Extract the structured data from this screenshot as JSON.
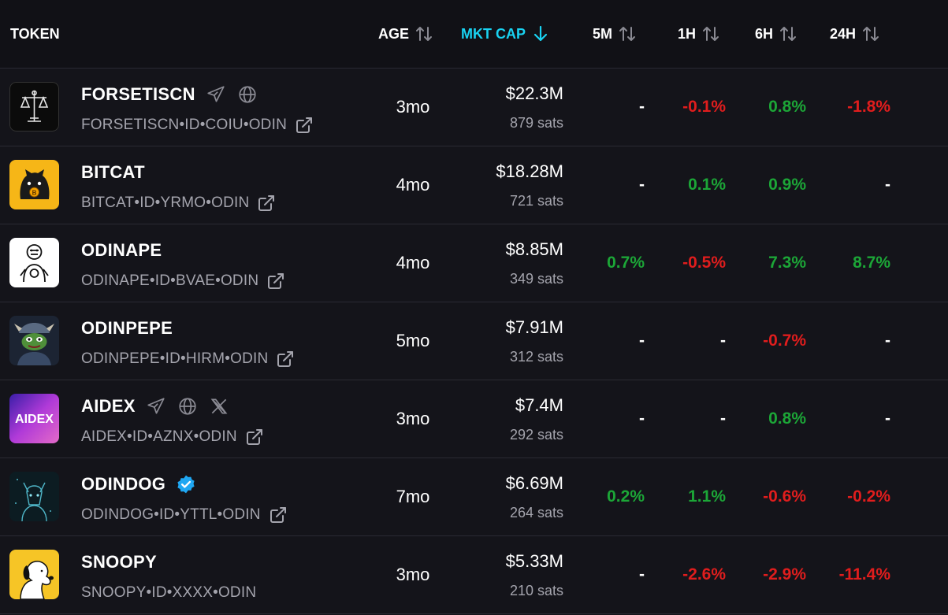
{
  "header": {
    "token": "TOKEN",
    "age": "AGE",
    "mkt_cap": "MKT CAP",
    "m5": "5M",
    "h1": "1H",
    "h6": "6H",
    "h24": "24H"
  },
  "colors": {
    "background": "#14141a",
    "accent": "#19d3f2",
    "positive": "#1ca637",
    "negative": "#e01d1d",
    "muted": "#a4a4ad"
  },
  "rows": [
    {
      "name": "FORSETISCN",
      "id": "FORSETISCN•ID•COIU•ODIN",
      "age": "3mo",
      "mcap": "$22.3M",
      "sats": "879 sats",
      "m5": "-",
      "h1": "-0.1%",
      "h6": "0.8%",
      "h24": "-1.8%",
      "icons": [
        "telegram-icon",
        "globe-icon"
      ],
      "logo": "scales-of-justice"
    },
    {
      "name": "BITCAT",
      "id": "BITCAT•ID•YRMO•ODIN",
      "age": "4mo",
      "mcap": "$18.28M",
      "sats": "721 sats",
      "m5": "-",
      "h1": "0.1%",
      "h6": "0.9%",
      "h24": "-",
      "icons": [],
      "logo": "black-cat-bitcoin"
    },
    {
      "name": "ODINAPE",
      "id": "ODINAPE•ID•BVAE•ODIN",
      "age": "4mo",
      "mcap": "$8.85M",
      "sats": "349 sats",
      "m5": "0.7%",
      "h1": "-0.5%",
      "h6": "7.3%",
      "h24": "8.7%",
      "icons": [],
      "logo": "ape-sketch"
    },
    {
      "name": "ODINPEPE",
      "id": "ODINPEPE•ID•HIRM•ODIN",
      "age": "5mo",
      "mcap": "$7.91M",
      "sats": "312 sats",
      "m5": "-",
      "h1": "-",
      "h6": "-0.7%",
      "h24": "-",
      "icons": [],
      "logo": "viking-pepe"
    },
    {
      "name": "AIDEX",
      "id": "AIDEX•ID•AZNX•ODIN",
      "age": "3mo",
      "mcap": "$7.4M",
      "sats": "292 sats",
      "m5": "-",
      "h1": "-",
      "h6": "0.8%",
      "h24": "-",
      "icons": [
        "telegram-icon",
        "globe-icon",
        "x-icon"
      ],
      "logo": "aidex",
      "logo_text": "AIDEX"
    },
    {
      "name": "ODINDOG",
      "id": "ODINDOG•ID•YTTL•ODIN",
      "age": "7mo",
      "mcap": "$6.69M",
      "sats": "264 sats",
      "m5": "0.2%",
      "h1": "1.1%",
      "h6": "-0.6%",
      "h24": "-0.2%",
      "icons": [
        "verified-badge-icon"
      ],
      "logo": "glowing-wolf"
    },
    {
      "name": "SNOOPY",
      "id": "SNOOPY•ID•XXXX•ODIN",
      "age": "3mo",
      "mcap": "$5.33M",
      "sats": "210 sats",
      "m5": "-",
      "h1": "-2.6%",
      "h6": "-2.9%",
      "h24": "-11.4%",
      "icons": [],
      "logo": "snoopy"
    }
  ]
}
